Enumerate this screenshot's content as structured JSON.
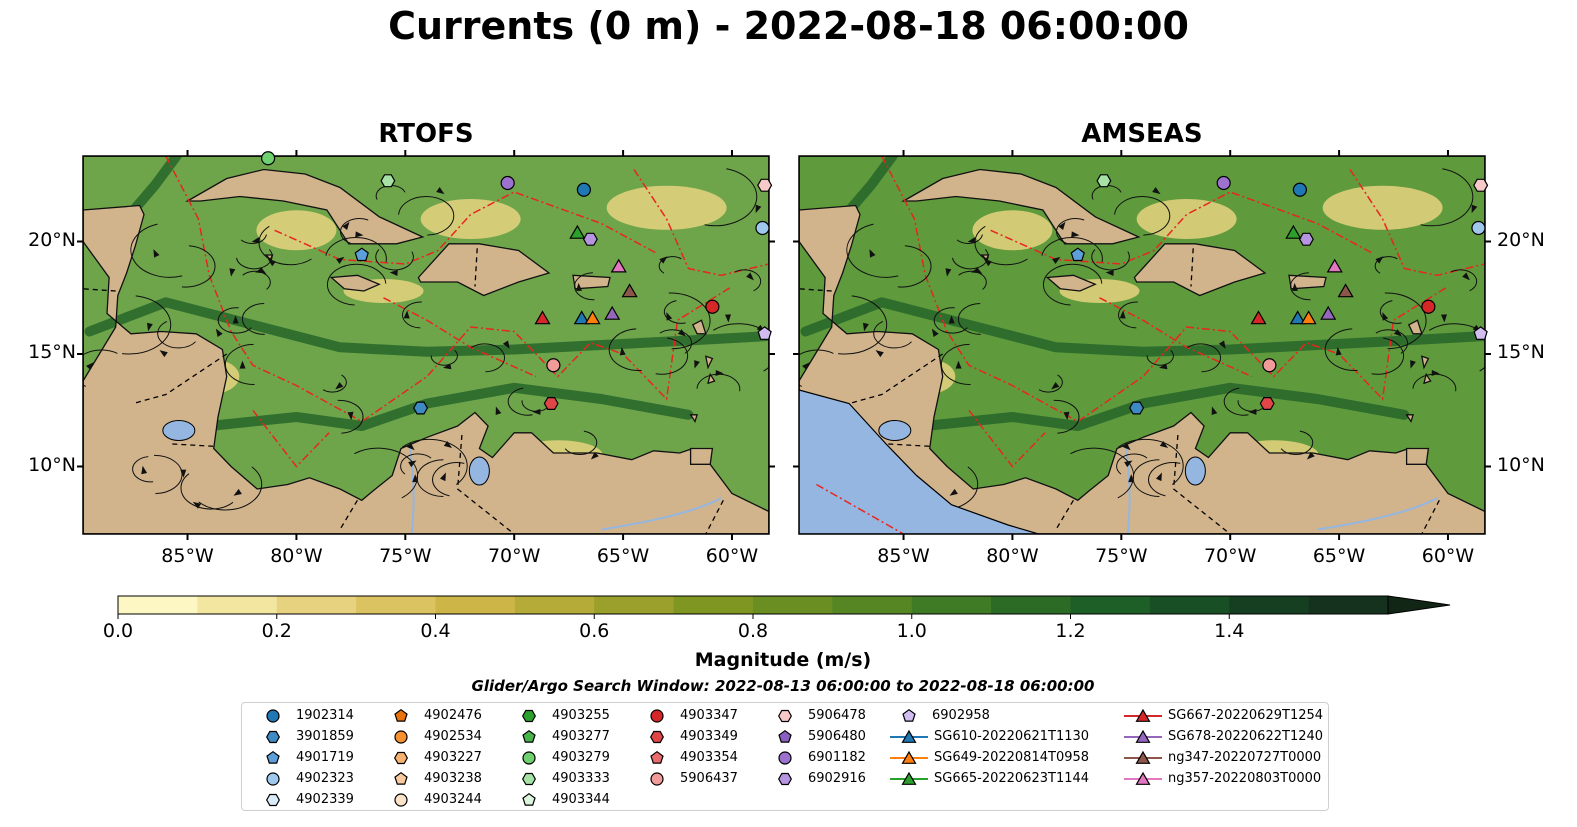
{
  "title": "Currents (0 m) - 2022-08-18 06:00:00",
  "panels": [
    {
      "title": "RTOFS",
      "ocean": "#6ea54a"
    },
    {
      "title": "AMSEAS",
      "ocean": "#5f9a3d"
    }
  ],
  "lon_ticks": [
    "85°W",
    "80°W",
    "75°W",
    "70°W",
    "65°W",
    "60°W"
  ],
  "lat_ticks": [
    "20°N",
    "15°N",
    "10°N"
  ],
  "colorbar": {
    "label": "Magnitude (m/s)",
    "ticks": [
      "0.0",
      "0.2",
      "0.4",
      "0.6",
      "0.8",
      "1.0",
      "1.2",
      "1.4"
    ],
    "colors": [
      "#fdf7c3",
      "#f2e6a0",
      "#e6d27f",
      "#dcc362",
      "#cdb548",
      "#b5ab38",
      "#9aa02b",
      "#7f9622",
      "#6a8e21",
      "#568624",
      "#3f7a25",
      "#2b6b26",
      "#1e5e27",
      "#184f25",
      "#163f22",
      "#15321f",
      "#122616"
    ]
  },
  "land_color": "#d2b48c",
  "search_window": "Glider/Argo Search Window: 2022-08-13 06:00:00 to 2022-08-18 06:00:00",
  "legend": [
    [
      {
        "label": "1902314",
        "marker": "circle",
        "color": "#1f77b4"
      },
      {
        "label": "3901859",
        "marker": "hexagon",
        "color": "#3e8ac4"
      },
      {
        "label": "4901719",
        "marker": "pentagon",
        "color": "#5d9fd8"
      },
      {
        "label": "4902323",
        "marker": "circle",
        "color": "#9ec8ec"
      },
      {
        "label": "4902339",
        "marker": "hexagon",
        "color": "#dcebf8"
      }
    ],
    [
      {
        "label": "4902476",
        "marker": "pentagon",
        "color": "#e8720c"
      },
      {
        "label": "4902534",
        "marker": "circle",
        "color": "#f5912e"
      },
      {
        "label": "4903227",
        "marker": "hexagon",
        "color": "#f8b26f"
      },
      {
        "label": "4903238",
        "marker": "pentagon",
        "color": "#f9caa0"
      },
      {
        "label": "4903244",
        "marker": "circle",
        "color": "#fbe3cb"
      }
    ],
    [
      {
        "label": "4903255",
        "marker": "hexagon",
        "color": "#2ca02c"
      },
      {
        "label": "4903277",
        "marker": "pentagon",
        "color": "#49b449"
      },
      {
        "label": "4903279",
        "marker": "circle",
        "color": "#6fd06f"
      },
      {
        "label": "4903333",
        "marker": "hexagon",
        "color": "#a6e2a6"
      },
      {
        "label": "4903344",
        "marker": "pentagon",
        "color": "#dcf5dc"
      }
    ],
    [
      {
        "label": "4903347",
        "marker": "circle",
        "color": "#d62728"
      },
      {
        "label": "4903349",
        "marker": "hexagon",
        "color": "#e04647"
      },
      {
        "label": "4903354",
        "marker": "pentagon",
        "color": "#ea6b6b"
      },
      {
        "label": "5906437",
        "marker": "circle",
        "color": "#f29b9b"
      }
    ],
    [
      {
        "label": "5906478",
        "marker": "hexagon",
        "color": "#f8c9c9"
      },
      {
        "label": "5906480",
        "marker": "pentagon",
        "color": "#8a5fc0"
      },
      {
        "label": "6901182",
        "marker": "circle",
        "color": "#9d72cf"
      },
      {
        "label": "6902916",
        "marker": "hexagon",
        "color": "#b594e0"
      }
    ],
    [
      {
        "label": "6902958",
        "marker": "pentagon",
        "color": "#d2bdf0"
      },
      {
        "label": "SG610-20220621T1130",
        "marker": "triangle",
        "color": "#1f77b4"
      },
      {
        "label": "SG649-20220814T0958",
        "marker": "triangle",
        "color": "#ff7f0e"
      },
      {
        "label": "SG665-20220623T1144",
        "marker": "triangle",
        "color": "#2ca02c"
      }
    ],
    [
      {
        "label": "SG667-20220629T1254",
        "marker": "triangle",
        "color": "#d62728"
      },
      {
        "label": "SG678-20220622T1240",
        "marker": "triangle",
        "color": "#9467bd"
      },
      {
        "label": "ng347-20220727T0000",
        "marker": "triangle",
        "color": "#8c564b"
      },
      {
        "label": "ng357-20220803T0000",
        "marker": "triangle",
        "color": "#e377c2"
      }
    ]
  ]
}
